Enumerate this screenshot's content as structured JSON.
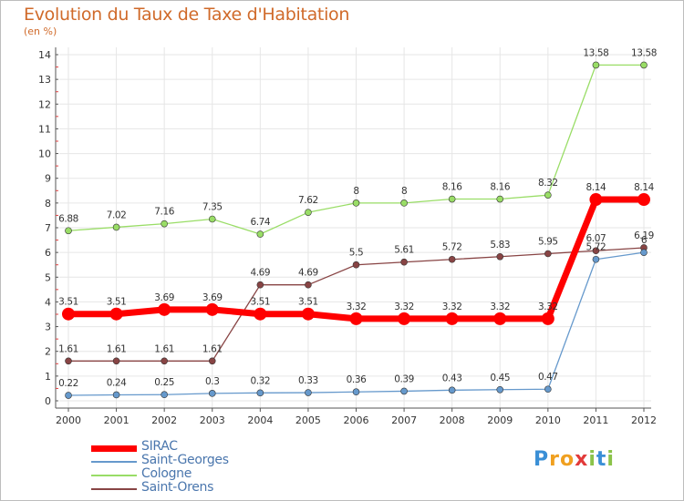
{
  "title": "Evolution du Taux de Taxe d'Habitation",
  "subtitle": "(en %)",
  "logo": {
    "letters": [
      "P",
      "r",
      "o",
      "x",
      "i",
      "t",
      "i"
    ],
    "colors": [
      "#3a8fd6",
      "#f0a020",
      "#f0a020",
      "#e23a3a",
      "#8bc34a",
      "#3a8fd6",
      "#8bc34a"
    ]
  },
  "chart_data": {
    "type": "line",
    "x": [
      "2000",
      "2001",
      "2002",
      "2003",
      "2004",
      "2005",
      "2006",
      "2007",
      "2008",
      "2009",
      "2010",
      "2011",
      "2012"
    ],
    "ylim": [
      0,
      14
    ],
    "yticks": [
      0,
      1,
      2,
      3,
      4,
      5,
      6,
      7,
      8,
      9,
      10,
      11,
      12,
      13,
      14
    ],
    "grid": true,
    "series": [
      {
        "name": "SIRAC",
        "color": "#ff0000",
        "width": 7,
        "radius": 7,
        "values": [
          3.51,
          3.51,
          3.69,
          3.69,
          3.51,
          3.51,
          3.32,
          3.32,
          3.32,
          3.32,
          3.32,
          8.14,
          8.14
        ],
        "labels": [
          "3.51",
          "3.51",
          "3.69",
          "3.69",
          "3.51",
          "3.51",
          "3.32",
          "3.32",
          "3.32",
          "3.32",
          "3.32",
          "8.14",
          "8.14"
        ]
      },
      {
        "name": "Saint-Georges",
        "color": "#6699cc",
        "width": 1.3,
        "radius": 3.5,
        "values": [
          0.22,
          0.24,
          0.25,
          0.3,
          0.32,
          0.33,
          0.36,
          0.39,
          0.43,
          0.45,
          0.47,
          5.72,
          6
        ],
        "labels": [
          "0.22",
          "0.24",
          "0.25",
          "0.3",
          "0.32",
          "0.33",
          "0.36",
          "0.39",
          "0.43",
          "0.45",
          "0.47",
          "5.72",
          "6"
        ]
      },
      {
        "name": "Cologne",
        "color": "#99dd66",
        "width": 1.3,
        "radius": 3.5,
        "values": [
          6.88,
          7.02,
          7.16,
          7.35,
          6.74,
          7.62,
          8,
          8,
          8.16,
          8.16,
          8.32,
          13.58,
          13.58
        ],
        "labels": [
          "6.88",
          "7.02",
          "7.16",
          "7.35",
          "6.74",
          "7.62",
          "8",
          "8",
          "8.16",
          "8.16",
          "8.32",
          "13.58",
          "13.58"
        ]
      },
      {
        "name": "Saint-Orens",
        "color": "#884444",
        "width": 1.3,
        "radius": 3.5,
        "values": [
          1.61,
          1.61,
          1.61,
          1.61,
          4.69,
          4.69,
          5.5,
          5.61,
          5.72,
          5.83,
          5.95,
          6.07,
          6.19
        ],
        "labels": [
          "1.61",
          "1.61",
          "1.61",
          "1.61",
          "4.69",
          "4.69",
          "5.5",
          "5.61",
          "5.72",
          "5.83",
          "5.95",
          "6.07",
          "6.19"
        ]
      }
    ],
    "legend_position": "bottom-left"
  }
}
